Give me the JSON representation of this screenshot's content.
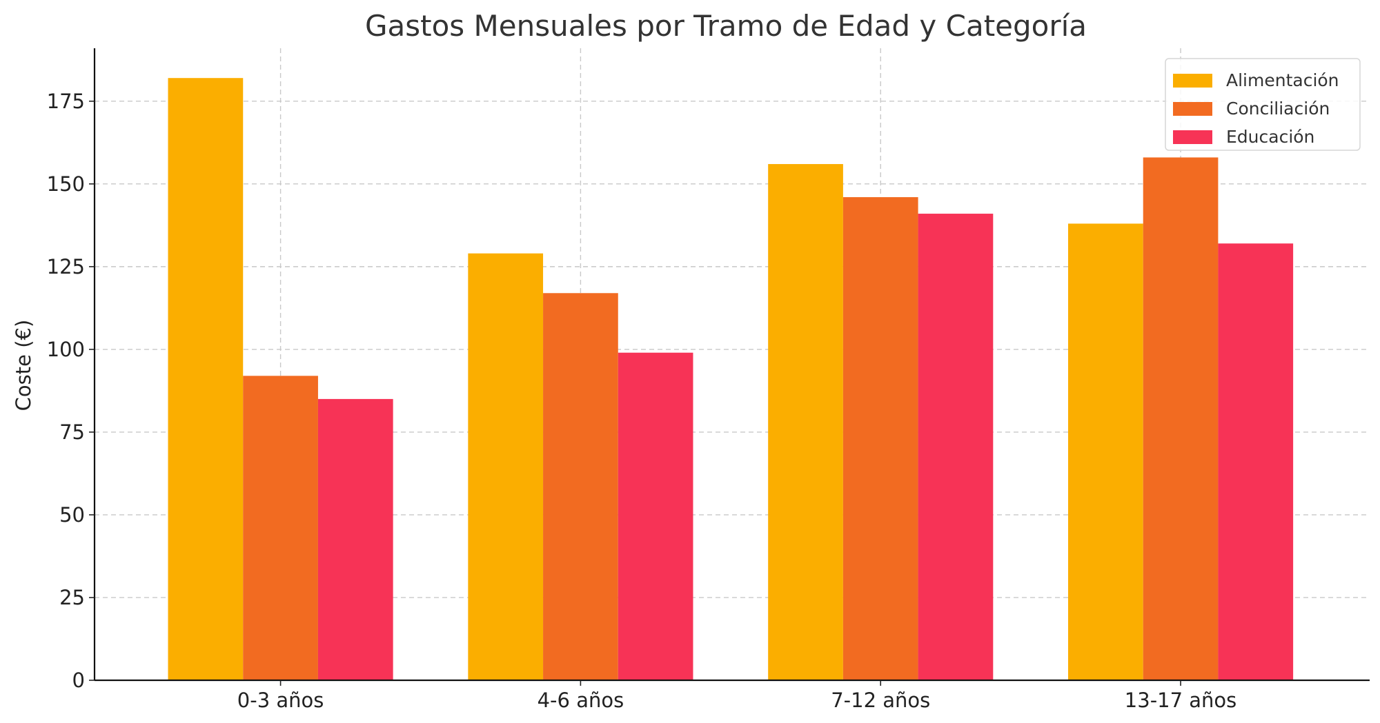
{
  "chart_data": {
    "type": "bar",
    "title": "Gastos Mensuales por Tramo de Edad y Categoría",
    "xlabel": "",
    "ylabel": "Coste (€)",
    "categories": [
      "0-3 años",
      "4-6 años",
      "7-12 años",
      "13-17 años"
    ],
    "series": [
      {
        "name": "Alimentación",
        "color": "#FBAE00",
        "values": [
          182,
          129,
          156,
          138
        ]
      },
      {
        "name": "Conciliación",
        "color": "#F26B21",
        "values": [
          92,
          117,
          146,
          158
        ]
      },
      {
        "name": "Educación",
        "color": "#F73356",
        "values": [
          85,
          99,
          141,
          132
        ]
      }
    ],
    "ylim": [
      0,
      191
    ],
    "yticks": [
      0,
      25,
      50,
      75,
      100,
      125,
      150,
      175
    ],
    "grid": true,
    "legend_position": "top-right"
  }
}
